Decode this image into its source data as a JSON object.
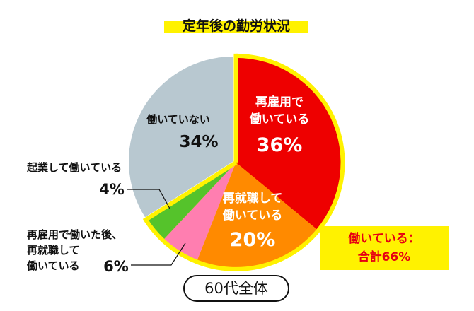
{
  "chart_data": {
    "type": "pie",
    "title": "定年後の勤労状況",
    "slices": [
      {
        "label_lines": [
          "再雇用で",
          "働いている"
        ],
        "value": 36,
        "value_label": "36%",
        "color": "#ee0000",
        "working": true
      },
      {
        "label_lines": [
          "再就職して",
          "働いている"
        ],
        "value": 20,
        "value_label": "20%",
        "color": "#ff8a00",
        "working": true
      },
      {
        "label_lines": [
          "再雇用で働いた後、",
          "再就職して",
          "働いている"
        ],
        "value": 6,
        "value_label": "6%",
        "color": "#ff7eb0",
        "working": true
      },
      {
        "label_lines": [
          "起業して働いている"
        ],
        "value": 4,
        "value_label": "4%",
        "color": "#55c32b",
        "working": true
      },
      {
        "label_lines": [
          "働いていない"
        ],
        "value": 34,
        "value_label": "34%",
        "color": "#b8c8d0",
        "working": false
      }
    ],
    "callout": {
      "line1": "働いている：",
      "line2": "合計66%"
    },
    "group_label": "60代全体",
    "colors": {
      "highlight": "#fff200",
      "callout_text": "#e60012"
    }
  }
}
